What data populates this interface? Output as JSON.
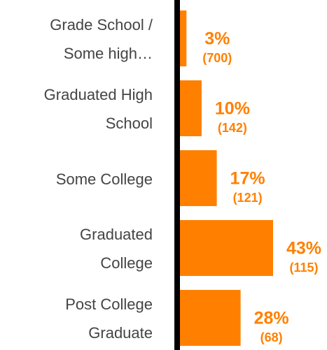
{
  "chart_data": {
    "type": "bar",
    "orientation": "horizontal",
    "categories": [
      [
        "Grade School /",
        "Some high…"
      ],
      [
        "Graduated High",
        "School"
      ],
      [
        "Some College"
      ],
      [
        "Graduated",
        "College"
      ],
      [
        "Post College",
        "Graduate"
      ]
    ],
    "values": [
      3,
      10,
      17,
      43,
      28
    ],
    "value_labels": [
      "3%",
      "10%",
      "17%",
      "43%",
      "28%"
    ],
    "count_labels": [
      "(700)",
      "(142)",
      "(121)",
      "(115)",
      "(68)"
    ],
    "color": "#ff8000"
  }
}
